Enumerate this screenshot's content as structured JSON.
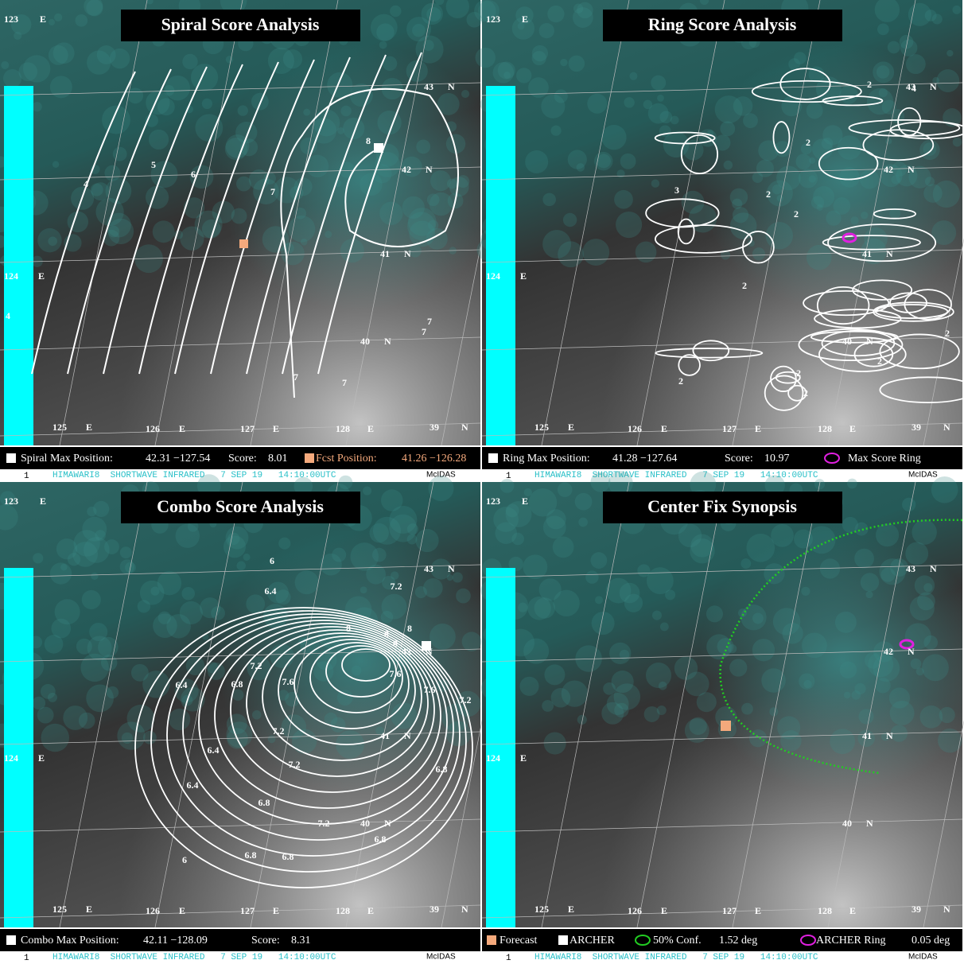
{
  "panels": [
    {
      "title": "Spiral Score Analysis",
      "legend": [
        "Spiral Max Position:",
        "42.31 −127.54",
        "Score:",
        "8.01",
        "Fcst Position:",
        "41.26 −126.28"
      ],
      "contour_labels": [
        "4",
        "5",
        "6",
        "7",
        "8",
        "7",
        "7",
        "7",
        "7",
        "4"
      ]
    },
    {
      "title": "Ring Score Analysis",
      "legend": [
        "Ring Max Position:",
        "41.28 −127.64",
        "Score:",
        "10.97",
        "Max Score Ring"
      ],
      "contour_labels": [
        "2",
        "2",
        "2",
        "2",
        "2",
        "2",
        "2",
        "2",
        "2",
        "2",
        "4",
        "3"
      ]
    },
    {
      "title": "Combo Score Analysis",
      "legend": [
        "Combo Max Position:",
        "42.11 −128.09",
        "Score:",
        "8.31"
      ],
      "contour_labels": [
        "6",
        "6.4",
        "7.2",
        "8",
        "8",
        "8",
        "8",
        "7.6",
        "7.6",
        "7.2",
        "7.2",
        "6.4",
        "6.8",
        "7.6",
        "7.2",
        "6.4",
        "6.4",
        "7.2",
        "6.8",
        "6.8",
        "7.2",
        "6",
        "6.8",
        "6.8",
        "6.8"
      ]
    },
    {
      "title": "Center Fix Synopsis",
      "legend": [
        "Forecast",
        "ARCHER",
        "50% Conf.",
        "1.52 deg",
        "ARCHER Ring",
        "0.05 deg"
      ],
      "contour_labels": []
    }
  ],
  "map_labels": [
    [
      "123",
      "E"
    ],
    [
      "43",
      "N"
    ],
    [
      "42",
      "N"
    ],
    [
      "41",
      "N"
    ],
    [
      "124",
      "E"
    ],
    [
      "40",
      "N"
    ],
    [
      "125",
      "E"
    ],
    [
      "126",
      "E"
    ],
    [
      "127",
      "E"
    ],
    [
      "128",
      "E"
    ],
    [
      "39",
      "N"
    ]
  ],
  "footer": {
    "frame": "1",
    "caption": "HIMAWARI8  SHORTWAVE INFRARED   7 SEP 19   14:10:00UTC",
    "brand": "McIDAS"
  }
}
